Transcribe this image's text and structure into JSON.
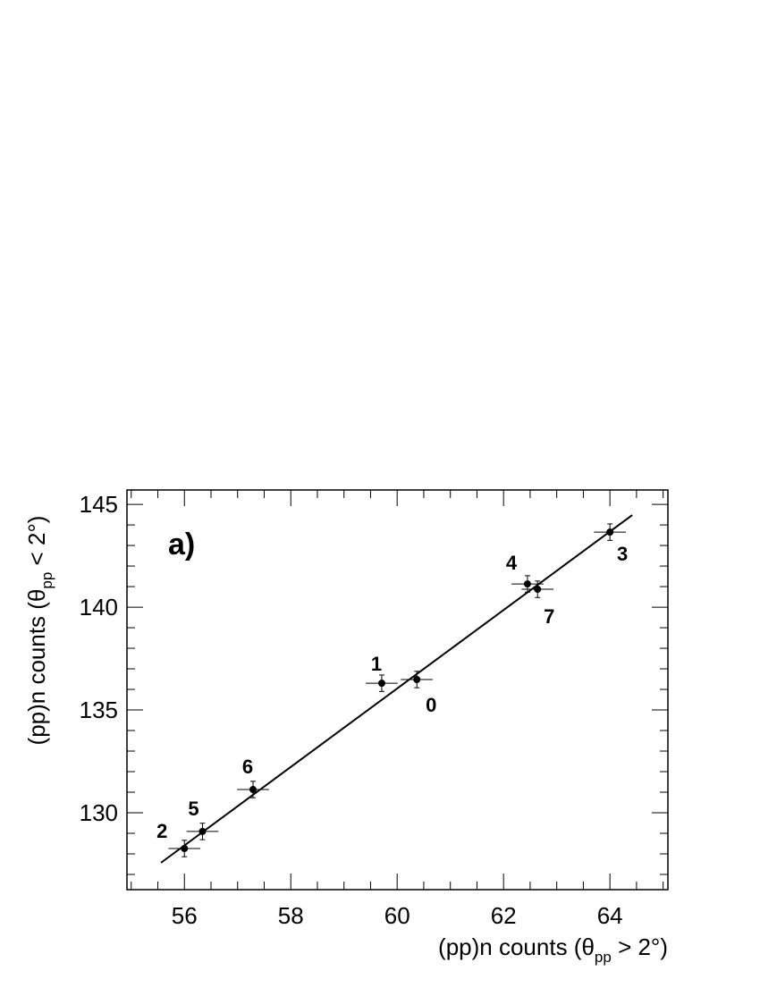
{
  "chart_data": {
    "type": "scatter",
    "panel_label": "a)",
    "xlabel": {
      "text": "(pp)n counts (θ",
      "sub": "pp",
      "tail": " > 2°)"
    },
    "ylabel": {
      "text": "(pp)n counts (θ",
      "sub": "pp",
      "tail": " < 2°)"
    },
    "xlim": [
      54.92,
      65.09
    ],
    "ylim": [
      126.26,
      145.7
    ],
    "xticks": [
      56,
      58,
      60,
      62,
      64
    ],
    "yticks": [
      130,
      135,
      140,
      145
    ],
    "xminorticks": [
      55,
      55.5,
      56.5,
      57,
      57.5,
      58.5,
      59,
      59.5,
      60.5,
      61,
      61.5,
      62.5,
      63,
      63.5,
      64.5,
      65
    ],
    "yminorticks": [
      127,
      128,
      129,
      131,
      132,
      133,
      134,
      136,
      137,
      138,
      139,
      141,
      142,
      143,
      144
    ],
    "point_labels": [
      "0",
      "1",
      "2",
      "3",
      "4",
      "5",
      "6",
      "7"
    ],
    "x": [
      60.37,
      59.71,
      56.0,
      64.0,
      62.45,
      56.34,
      57.29,
      62.64
    ],
    "values": [
      136.48,
      136.3,
      128.26,
      143.65,
      141.13,
      129.09,
      131.13,
      140.87
    ],
    "xerr": [
      0.3,
      0.3,
      0.3,
      0.3,
      0.3,
      0.3,
      0.3,
      0.3
    ],
    "yerr": [
      0.4,
      0.4,
      0.4,
      0.4,
      0.4,
      0.4,
      0.4,
      0.4
    ],
    "color": "#000000",
    "fit": {
      "x": [
        55.56,
        64.42
      ],
      "y": [
        127.57,
        144.48
      ]
    }
  }
}
